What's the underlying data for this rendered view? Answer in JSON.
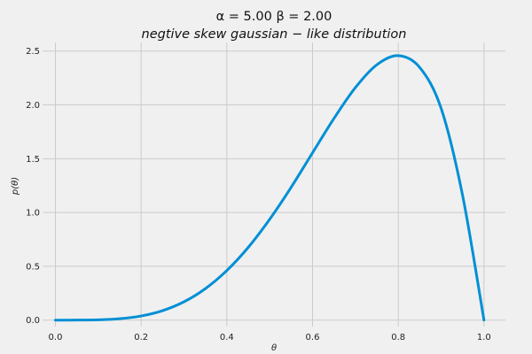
{
  "chart_data": {
    "type": "line",
    "title": "α = 5.00    β = 2.00",
    "subtitle": "negtive  skew  gaussian − like   distribution",
    "xlabel": "θ",
    "ylabel": "p(θ)",
    "xlim": [
      -0.03,
      1.05
    ],
    "ylim": [
      -0.06,
      2.58
    ],
    "grid": true,
    "xticks": [
      0.0,
      0.2,
      0.4,
      0.6,
      0.8,
      1.0
    ],
    "xtick_labels": [
      "0.0",
      "0.2",
      "0.4",
      "0.6",
      "0.8",
      "1.0"
    ],
    "yticks": [
      0.0,
      0.5,
      1.0,
      1.5,
      2.0,
      2.5
    ],
    "ytick_labels": [
      "0.0",
      "0.5",
      "1.0",
      "1.5",
      "2.0",
      "2.5"
    ],
    "series": [
      {
        "color": "#008fd5",
        "x": [
          0.0,
          0.05,
          0.1,
          0.15,
          0.2,
          0.25,
          0.3,
          0.35,
          0.4,
          0.45,
          0.5,
          0.55,
          0.6,
          0.65,
          0.7,
          0.75,
          0.8,
          0.85,
          0.9,
          0.95,
          1.0
        ],
        "y": [
          0.0,
          0.0002,
          0.0027,
          0.0129,
          0.0384,
          0.0879,
          0.1701,
          0.2927,
          0.4608,
          0.676,
          0.9375,
          1.2342,
          1.5552,
          1.8743,
          2.1609,
          2.373,
          2.4576,
          2.3484,
          1.9683,
          1.1606,
          0.0
        ]
      }
    ]
  }
}
